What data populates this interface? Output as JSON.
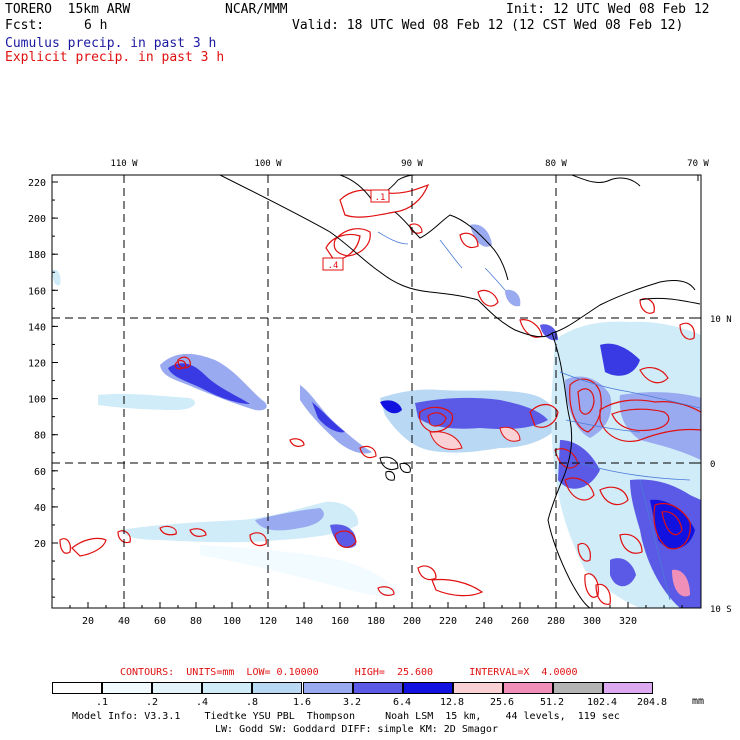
{
  "header": {
    "model": "TORERO  15km ARW",
    "org": "NCAR/MMM",
    "init": "Init: 12 UTC Wed 08 Feb 12",
    "fcst_label": "Fcst:",
    "fcst_value": "6 h",
    "valid": "Valid: 18 UTC Wed 08 Feb 12 (12 CST Wed 08 Feb 12)",
    "cumulus_label": "Cumulus precip. in past 3 h",
    "explicit_label": "Explicit precip. in past 3 h",
    "cumulus_color": "#1a1aa0",
    "explicit_color": "#e01010"
  },
  "map": {
    "lon_labels": [
      "110 W",
      "100 W",
      "90 W",
      "80 W",
      "70 W"
    ],
    "lat_labels": [
      "10 N",
      "0",
      "10 S"
    ],
    "y_ticks": [
      "220",
      "200",
      "180",
      "160",
      "140",
      "120",
      "100",
      "80",
      "60",
      "40",
      "20"
    ],
    "x_ticks": [
      "20",
      "40",
      "60",
      "80",
      "100",
      "120",
      "140",
      "160",
      "180",
      "200",
      "220",
      "240",
      "260",
      "280",
      "300",
      "320"
    ],
    "box_labels": [
      ".1",
      ".4"
    ]
  },
  "contours": {
    "text": "CONTOURS:  UNITS=mm  LOW= 0.10000      HIGH=  25.600      INTERVAL=X  4.0000",
    "color": "#e01010"
  },
  "legend": {
    "labels": [
      ".1",
      ".2",
      ".4",
      ".8",
      "1.6",
      "3.2",
      "6.4",
      "12.8",
      "25.6",
      "51.2",
      "102.4",
      "204.8"
    ],
    "unit": "mm",
    "colors": [
      "#ffffff",
      "#f2fbff",
      "#e3f4fb",
      "#d0ecf8",
      "#b8d8f4",
      "#9aaaf0",
      "#5a5ae6",
      "#1212e0",
      "#fad2d6",
      "#f090b8",
      "#b4b4b4",
      "#dca8f0"
    ]
  },
  "footer": {
    "line1": "Model Info: V3.3.1    Tiedtke YSU PBL  Thompson     Noah LSM  15 km,    44 levels,  119 sec",
    "line2": "LW: Godd SW: Goddard DIFF: simple KM: 2D Smagor"
  }
}
